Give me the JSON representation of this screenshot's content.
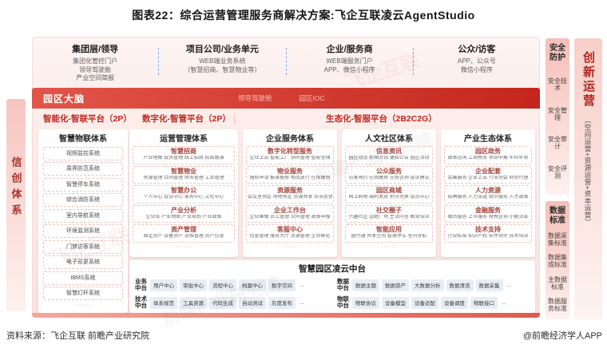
{
  "title": "图表22：综合运营管理服务商解决方案:飞企互联凌云AgentStudio",
  "footer": {
    "source": "资料来源：飞企互联 前瞻产业研究院",
    "credit": "@前瞻经济学人APP"
  },
  "left_bar": {
    "label": "信创体系"
  },
  "top_users": [
    {
      "title": "集团层/领导",
      "lines": [
        "集团化管控门户",
        "领导驾驶舱",
        "产业空间简报"
      ]
    },
    {
      "title": "项目公司/业务单元",
      "lines": [
        "WEB端业务系统",
        "（智慧招商、智慧物业等）"
      ]
    },
    {
      "title": "企业/服务商",
      "lines": [
        "WEB端服务门户",
        "APP、微信小程序"
      ]
    },
    {
      "title": "公众/访客",
      "lines": [
        "APP、公众号",
        "微信小程序"
      ]
    }
  ],
  "brain_bar": {
    "title": "园区大脑",
    "tags": [
      "领导驾驶舱",
      "园区IOC"
    ]
  },
  "platforms": [
    "智能化-智联平台（2P）",
    "数字化-智管平台（2P）",
    "生态化-智服平台（2B2C2G）"
  ],
  "iot_column": {
    "title": "智慧物联体系",
    "items": [
      "视频监控系统",
      "周界防范系统",
      "智慧停车系统",
      "综合消防系统",
      "室内导航系统",
      "环境监测系统",
      "门禁访客系统",
      "电子巡更系统",
      "IBMS系统",
      "智慧灯杆系统"
    ],
    "more": "······"
  },
  "columns": [
    {
      "title": "运营管理体系",
      "more": "······",
      "groups": [
        {
          "name": "智慧招商",
          "sub": "产业地图 投资管理 线上招商 招商路演"
        },
        {
          "name": "智慧物业",
          "sub": "房源管理 合同管理 财务管理 工单管理"
        },
        {
          "name": "智慧办公",
          "sub": "个人中心 会议中心 事务中心 文化中心"
        },
        {
          "name": "产业分析",
          "sub": "企业库 产业地图 产业规划 产业政策"
        },
        {
          "name": "资产管理",
          "sub": "固定资产 设备资产 运维管理 资产信息"
        }
      ]
    },
    {
      "title": "企业服务体系",
      "more": "······",
      "groups": [
        {
          "name": "数字化转型服务",
          "sub": "企业上云 智能工厂 协同管理 智能仓储"
        },
        {
          "name": "物业服务",
          "sub": "报修申请 报事报修 物品放行 在线缴费"
        },
        {
          "name": "资源服务",
          "sub": "会议室预定 场地预定 资源共享 诉求反馈"
        },
        {
          "name": "企业工作台",
          "sub": "企业画像 员工管理 合同管理 政策申报"
        },
        {
          "name": "客服中心",
          "sub": "信息管理 服务大厅 资源管理 企业孵化"
        }
      ]
    },
    {
      "title": "人文社区体系",
      "more": "······",
      "groups": [
        {
          "name": "信息资讯",
          "sub": "园区动态 新闻资讯 通知公告 园区活动"
        },
        {
          "name": "公众服务",
          "sub": "访客预约 在线缴费 在线咨询 投诉建议"
        },
        {
          "name": "园区商城",
          "sub": "网上购物 福利发放 积分兑换 会员中心"
        },
        {
          "name": "社交圈子",
          "sub": "兴趣社区 话题广场 生活问答 教育培训"
        },
        {
          "name": "智能应用",
          "sub": "园付通 共享空间 智慧停车 室内导航"
        }
      ]
    },
    {
      "title": "产业生态体系",
      "more": "······",
      "groups": [
        {
          "name": "园区政务",
          "sub": "政策咨询 工商税务 项目申报 年检年审"
        },
        {
          "name": "企业配套",
          "sub": "会展服务 企业上云 行业协会 财务代理"
        },
        {
          "name": "人力资源",
          "sub": "招聘服务 人力派遣 猎头服务 人才政策"
        },
        {
          "name": "金融服务",
          "sub": "融资服务 上市服务 财税咨询 小额贷款"
        },
        {
          "name": "技术支持",
          "sub": "行业标准 知识产权 软件测评 技术培训"
        }
      ]
    }
  ],
  "midplatform": {
    "title": "智慧园区凌云中台",
    "groups": [
      {
        "name": "业务中台",
        "items": [
          "用户中心",
          "审批中心",
          "流程中心",
          "档案中心",
          "数字空间"
        ],
        "more": "..."
      },
      {
        "name": "数据中台",
        "items": [
          "数据主题",
          "数据资产",
          "大数据分析",
          "数据清洗",
          "数据采集"
        ],
        "more": "..."
      },
      {
        "name": "技术中台",
        "items": [
          "体系规范",
          "工具资源",
          "代码生成",
          "自动测试",
          "灰度发布"
        ],
        "more": "..."
      },
      {
        "name": "物联中台",
        "items": [
          "物联协议",
          "设备模型",
          "设备适配",
          "设备调度",
          "物联接口"
        ],
        "more": "..."
      }
    ]
  },
  "right_panels": [
    {
      "title": "安全防护",
      "items": [
        "安全技术",
        "安全管理",
        "安全审计",
        "安全评测"
      ]
    },
    {
      "title": "数据标准",
      "items": [
        "数据采集标准",
        "数据集成标准",
        "主数据标准",
        "数据服务标准"
      ]
    }
  ],
  "innovation_bar": {
    "title": "创新运营",
    "subtitle": "（空间运营+资源运营+资本运营）"
  },
  "watermarks": [
    "飞企互联",
    "前瞻产业研究院",
    "飞企互联",
    "前瞻产业研究院"
  ]
}
